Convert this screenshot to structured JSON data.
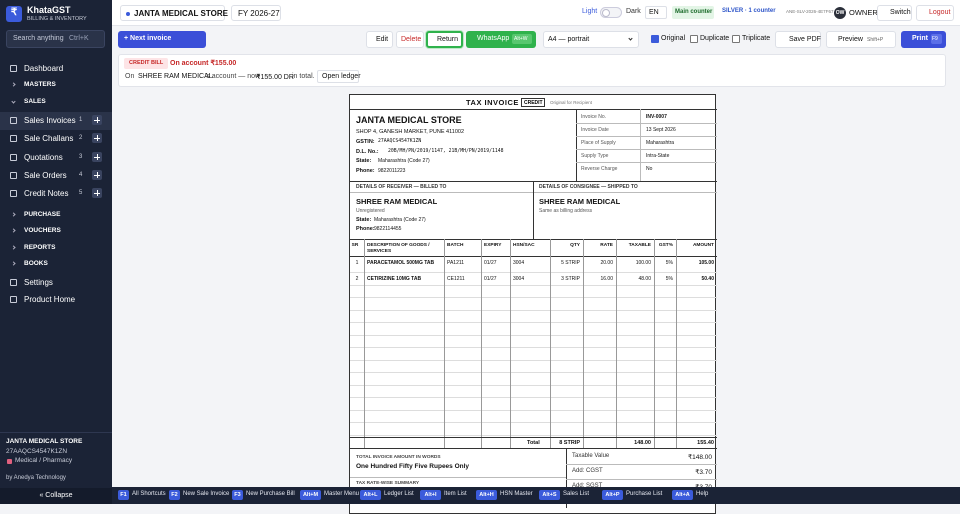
{
  "sidebar": {
    "logo": "₹",
    "brand": "KhataGST",
    "tagline": "BILLING & INVENTORY",
    "search": "Search anything",
    "search_key": "Ctrl+K",
    "nav": [
      {
        "label": "Dashboard"
      },
      {
        "label": "MASTERS"
      },
      {
        "label": "SALES"
      },
      {
        "label": "Sales Invoices",
        "count": 1
      },
      {
        "label": "Sale Challans",
        "count": 2
      },
      {
        "label": "Quotations",
        "count": 3
      },
      {
        "label": "Sale Orders",
        "count": 4
      },
      {
        "label": "Credit Notes",
        "count": 5
      },
      {
        "label": "PURCHASE"
      },
      {
        "label": "VOUCHERS"
      },
      {
        "label": "REPORTS"
      },
      {
        "label": "BOOKS"
      },
      {
        "label": "Settings"
      },
      {
        "label": "Product Home"
      }
    ],
    "company": "JANTA MEDICAL STORE",
    "gstin": "27AAQCS4547K1ZN",
    "category": "Medical / Pharmacy",
    "credit": "by Anedya Technology",
    "collapse": "« Collapse"
  },
  "topbar": {
    "store": "JANTA MEDICAL STORE",
    "fy": "FY 2026-27",
    "light": "Light",
    "dark": "Dark",
    "lang": "EN",
    "counter": "Main counter",
    "plan": "SILVER · 1 counter",
    "license": "ANE-SLV-2026-4E7F67",
    "avatar": "OW",
    "role": "OWNER",
    "switch": "Switch",
    "logout": "Logout"
  },
  "toolbar": {
    "next": "+ Next invoice",
    "edit": "Edit",
    "delete": "Delete",
    "return": "Return",
    "whatsapp": "WhatsApp",
    "whatsapp_key": "Alt+W",
    "paper": "A4 — portrait",
    "copies": [
      "Original",
      "Duplicate",
      "Triplicate"
    ],
    "save_pdf": "Save PDF",
    "preview": "Preview",
    "preview_key": "Shift+P",
    "print": "Print",
    "print_key": "F9"
  },
  "banner": {
    "tag": "CREDIT BILL",
    "headline": "On account ₹155.00",
    "pre": "On",
    "party": "SHREE RAM MEDICAL",
    "mid": "'s account — now",
    "amount": "₹155.00 DR",
    "post": "in total.",
    "ledger": "Open ledger"
  },
  "invoice": {
    "title": "TAX INVOICE",
    "badge": "CREDIT",
    "copy": "Original for Recipient",
    "seller": {
      "name": "JANTA MEDICAL STORE",
      "address": "SHOP 4, GANESH MARKET, PUNE 411002",
      "fields": [
        [
          "GSTIN:",
          "27AAQCS4547K1ZN"
        ],
        [
          "D.L. No.:",
          "20B/MH/PN/2019/1147, 21B/MH/PN/2019/1148"
        ],
        [
          "State:",
          "Maharashtra (Code 27)"
        ],
        [
          "Phone:",
          "9822011223"
        ]
      ]
    },
    "meta": [
      [
        "Invoice No.",
        "INV-0007"
      ],
      [
        "Invoice Date",
        "13 Sept 2026"
      ],
      [
        "Place of Supply",
        "Maharashtra"
      ],
      [
        "Supply Type",
        "Intra-State"
      ],
      [
        "Reverse Charge",
        "No"
      ]
    ],
    "receiver": {
      "heading": "DETAILS OF RECEIVER — BILLED TO",
      "name": "SHREE RAM MEDICAL",
      "status": "Unregistered",
      "fields": [
        [
          "State:",
          "Maharashtra (Code 27)"
        ],
        [
          "Phone:",
          "9822114455"
        ]
      ]
    },
    "consignee": {
      "heading": "DETAILS OF CONSIGNEE — SHIPPED TO",
      "name": "SHREE RAM MEDICAL",
      "note": "Same as billing address"
    },
    "columns": [
      "SR",
      "DESCRIPTION OF GOODS / SERVICES",
      "BATCH",
      "EXPIRY",
      "HSN/SAC",
      "QTY",
      "RATE",
      "TAXABLE",
      "GST%",
      "AMOUNT"
    ],
    "rows": [
      [
        "1",
        "PARACETAMOL 500MG TAB",
        "PA1211",
        "01/27",
        "3004",
        "5 STRIP",
        "20.00",
        "100.00",
        "5%",
        "105.00"
      ],
      [
        "2",
        "CETIRIZINE 10MG TAB",
        "CE1211",
        "01/27",
        "3004",
        "3 STRIP",
        "16.00",
        "48.00",
        "5%",
        "50.40"
      ]
    ],
    "total": {
      "label": "Total",
      "qty": "8 STRIP",
      "taxable": "148.00",
      "amount": "155.40"
    },
    "words_heading": "TOTAL INVOICE AMOUNT IN WORDS",
    "words": "One Hundred Fifty Five Rupees Only",
    "tax_heading": "TAX RATE-WISE SUMMARY",
    "summary": [
      [
        "Taxable Value",
        "₹148.00"
      ],
      [
        "Add: CGST",
        "₹3.70"
      ],
      [
        "Add: SGST",
        "₹3.70"
      ]
    ]
  },
  "shortcuts": [
    {
      "key": "F1",
      "label": "All Shortcuts"
    },
    {
      "key": "F2",
      "label": "New Sale Invoice"
    },
    {
      "key": "F3",
      "label": "New Purchase Bill"
    },
    {
      "key": "Alt+M",
      "label": "Master Menu"
    },
    {
      "key": "Alt+L",
      "label": "Ledger List"
    },
    {
      "key": "Alt+I",
      "label": "Item List"
    },
    {
      "key": "Alt+H",
      "label": "HSN Master"
    },
    {
      "key": "Alt+S",
      "label": "Sales List"
    },
    {
      "key": "Alt+P",
      "label": "Purchase List"
    },
    {
      "key": "Alt+A",
      "label": "Help"
    }
  ]
}
